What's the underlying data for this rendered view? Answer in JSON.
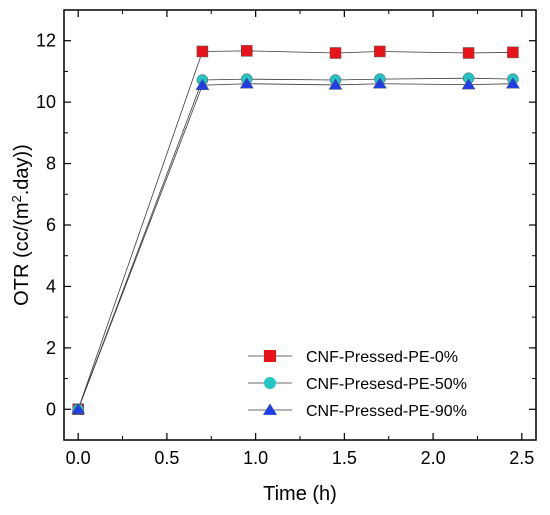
{
  "chart_data": {
    "type": "line",
    "title": "",
    "xlabel": "Time (h)",
    "ylabel_main": "OTR (cc/(m",
    "ylabel_sup": "2",
    "ylabel_tail": ".day))",
    "xlim": [
      -0.08,
      2.58
    ],
    "ylim": [
      -1,
      13
    ],
    "xticks": [
      0.0,
      0.5,
      1.0,
      1.5,
      2.0,
      2.5
    ],
    "xtick_labels": [
      "0.0",
      "0.5",
      "1.0",
      "1.5",
      "2.0",
      "2.5"
    ],
    "yticks": [
      0,
      2,
      4,
      6,
      8,
      10,
      12
    ],
    "ytick_labels": [
      "0",
      "2",
      "4",
      "6",
      "8",
      "10",
      "12"
    ],
    "grid": false,
    "legend_position": "bottom-right",
    "x": [
      0.0,
      0.7,
      0.95,
      1.45,
      1.7,
      2.2,
      2.45
    ],
    "series": [
      {
        "name": "CNF-Pressed-PE-0%",
        "marker": "square",
        "color": "#e8141a",
        "values": [
          0.0,
          11.65,
          11.67,
          11.6,
          11.65,
          11.6,
          11.62
        ]
      },
      {
        "name": "CNF-Presesd-PE-50%",
        "marker": "circle",
        "color": "#22c4c4",
        "values": [
          0.0,
          10.72,
          10.75,
          10.72,
          10.75,
          10.78,
          10.75
        ]
      },
      {
        "name": "CNF-Pressed-PE-90%",
        "marker": "triangle",
        "color": "#1f3fe6",
        "values": [
          0.0,
          10.55,
          10.6,
          10.56,
          10.6,
          10.57,
          10.6
        ]
      }
    ]
  }
}
